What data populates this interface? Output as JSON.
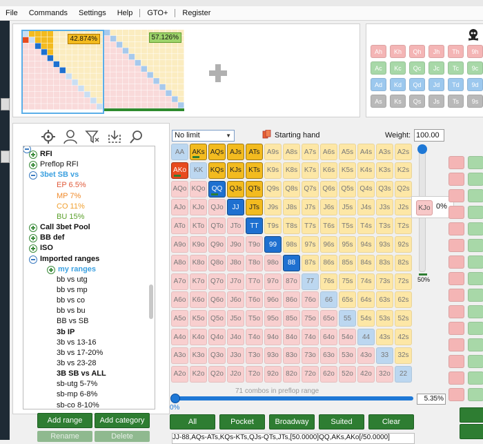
{
  "menu": [
    "File",
    "Commands",
    "Settings",
    "Help",
    "GTO+",
    "Register"
  ],
  "thumbs": [
    {
      "pct": "42.874%"
    },
    {
      "pct": "57.126%"
    }
  ],
  "board_cards": [
    [
      "Ah",
      "Kh",
      "Qh",
      "Jh",
      "Th",
      "9h"
    ],
    [
      "Ac",
      "Kc",
      "Qc",
      "Jc",
      "Tc",
      "9c"
    ],
    [
      "Ad",
      "Kd",
      "Qd",
      "Jd",
      "Td",
      "9d"
    ],
    [
      "As",
      "Ks",
      "Qs",
      "Js",
      "Ts",
      "9s"
    ]
  ],
  "suit_colors": {
    "h": "#f4b5b5",
    "c": "#a8d8a8",
    "d": "#9cc8ee",
    "s": "#b9b9b9"
  },
  "tree": [
    {
      "label": "RFI",
      "indent": 0,
      "icon": "plus",
      "bold": true,
      "color": "#111"
    },
    {
      "label": "Preflop RFI",
      "indent": 0,
      "icon": "plus",
      "bold": false,
      "color": "#111"
    },
    {
      "label": "3bet SB vs",
      "indent": 0,
      "icon": "minus",
      "bold": true,
      "color": "#3ba0e0"
    },
    {
      "label": "EP 6.5%",
      "indent": 2,
      "icon": "",
      "bold": false,
      "color": "#e05a3a"
    },
    {
      "label": "MP 7%",
      "indent": 2,
      "icon": "",
      "bold": false,
      "color": "#f08a2a"
    },
    {
      "label": "CO 11%",
      "indent": 2,
      "icon": "",
      "bold": false,
      "color": "#f0a030"
    },
    {
      "label": "BU 15%",
      "indent": 2,
      "icon": "",
      "bold": false,
      "color": "#5aa02a"
    },
    {
      "label": "Call 3bet Pool",
      "indent": 0,
      "icon": "plus",
      "bold": true,
      "color": "#111"
    },
    {
      "label": "BB def",
      "indent": 0,
      "icon": "plus",
      "bold": true,
      "color": "#111"
    },
    {
      "label": "ISO",
      "indent": 0,
      "icon": "plus",
      "bold": true,
      "color": "#111"
    },
    {
      "label": "Imported ranges",
      "indent": 0,
      "icon": "minus",
      "bold": true,
      "color": "#111"
    },
    {
      "label": "my ranges",
      "indent": 1,
      "icon": "plus",
      "bold": true,
      "color": "#3ba0e0"
    },
    {
      "label": "bb vs utg",
      "indent": 2,
      "icon": "",
      "bold": false,
      "color": "#111"
    },
    {
      "label": "bb vs mp",
      "indent": 2,
      "icon": "",
      "bold": false,
      "color": "#111"
    },
    {
      "label": "bb vs co",
      "indent": 2,
      "icon": "",
      "bold": false,
      "color": "#111"
    },
    {
      "label": "bb vs bu",
      "indent": 2,
      "icon": "",
      "bold": false,
      "color": "#111"
    },
    {
      "label": "BB vs SB",
      "indent": 2,
      "icon": "",
      "bold": false,
      "color": "#111"
    },
    {
      "label": "3b IP",
      "indent": 2,
      "icon": "",
      "bold": true,
      "color": "#111"
    },
    {
      "label": "3b vs 13-16",
      "indent": 2,
      "icon": "",
      "bold": false,
      "color": "#111"
    },
    {
      "label": "3b vs 17-20%",
      "indent": 2,
      "icon": "",
      "bold": false,
      "color": "#111"
    },
    {
      "label": "3b vs 23-28",
      "indent": 2,
      "icon": "",
      "bold": false,
      "color": "#111"
    },
    {
      "label": "3B SB vs ALL",
      "indent": 2,
      "icon": "",
      "bold": true,
      "color": "#111"
    },
    {
      "label": "sb-utg 5-7%",
      "indent": 2,
      "icon": "",
      "bold": false,
      "color": "#111"
    },
    {
      "label": "sb-mp 6-8%",
      "indent": 2,
      "icon": "",
      "bold": false,
      "color": "#111"
    },
    {
      "label": "sb-co 8-10%",
      "indent": 2,
      "icon": "",
      "bold": false,
      "color": "#111"
    }
  ],
  "tree_buttons": {
    "add_range": "Add range",
    "add_category": "Add category",
    "rename": "Rename",
    "delete": "Delete"
  },
  "matrix": {
    "select_value": "No limit",
    "starting_hand": "Starting hand",
    "weight_label": "Weight:",
    "weight_value": "100.00",
    "hint_hand": "KJo",
    "hint_pct": "0%",
    "slider_pct": "50%",
    "combos_text": "71 combos in preflop range",
    "zero": "0%",
    "range_pct": "5.35%",
    "range_text": "JJ-88,AQs-ATs,KQs-KTs,QJs-QTs,JTs,[50.0000]QQ,AKs,AKo[/50.0000]"
  },
  "ranks": [
    "A",
    "K",
    "Q",
    "J",
    "T",
    "9",
    "8",
    "7",
    "6",
    "5",
    "4",
    "3",
    "2"
  ],
  "selected": [
    "AKs",
    "AQs",
    "AJs",
    "ATs",
    "KQs",
    "KJs",
    "KTs",
    "QQ",
    "QJs",
    "QTs",
    "JJ",
    "JTs",
    "TT",
    "99",
    "88"
  ],
  "blue": [
    "QQ",
    "JJ",
    "TT",
    "99",
    "88"
  ],
  "orange": [
    "AKo"
  ],
  "half": [
    "AKs",
    "QQ",
    "AKo"
  ],
  "filter_buttons": [
    "All",
    "Pocket",
    "Broadway",
    "Suited",
    "Clear"
  ],
  "colors": {
    "pair": "#bcd7f0",
    "suited": "#fde7a6",
    "offsuit": "#f8cfcf",
    "sel_yellow": "#f3bb1f",
    "sel_blue": "#1e70d0",
    "sel_orange": "#e84b1d",
    "green": "#2e7d32"
  }
}
